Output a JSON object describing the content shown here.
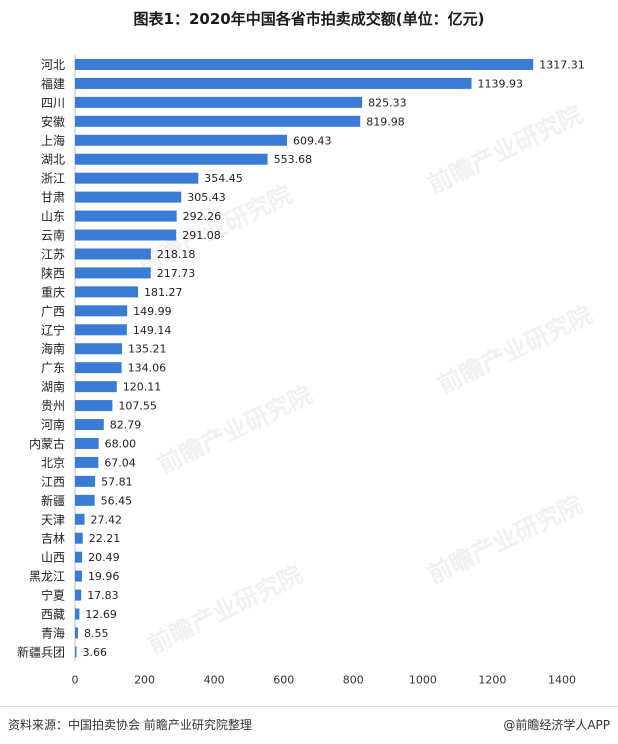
{
  "title": "图表1：2020年中国各省市拍卖成交额(单位：亿元)",
  "chart_data": {
    "type": "bar",
    "orientation": "horizontal",
    "title": "图表1：2020年中国各省市拍卖成交额(单位：亿元)",
    "xlabel": "",
    "ylabel": "",
    "xlim": [
      0,
      1400
    ],
    "x_ticks": [
      0,
      200,
      400,
      600,
      800,
      1000,
      1200,
      1400
    ],
    "grid": false,
    "bar_color": "#3a7bd5",
    "categories": [
      "河北",
      "福建",
      "四川",
      "安徽",
      "上海",
      "湖北",
      "浙江",
      "甘肃",
      "山东",
      "云南",
      "江苏",
      "陕西",
      "重庆",
      "广西",
      "辽宁",
      "海南",
      "广东",
      "湖南",
      "贵州",
      "河南",
      "内蒙古",
      "北京",
      "江西",
      "新疆",
      "天津",
      "吉林",
      "山西",
      "黑龙江",
      "宁夏",
      "西藏",
      "青海",
      "新疆兵团"
    ],
    "values": [
      1317.31,
      1139.93,
      825.33,
      819.98,
      609.43,
      553.68,
      354.45,
      305.43,
      292.26,
      291.08,
      218.18,
      217.73,
      181.27,
      149.99,
      149.14,
      135.21,
      134.06,
      120.11,
      107.55,
      82.79,
      68.0,
      67.04,
      57.81,
      56.45,
      27.42,
      22.21,
      20.49,
      19.96,
      17.83,
      12.69,
      8.55,
      3.66
    ],
    "value_labels": [
      "1317.31",
      "1139.93",
      "825.33",
      "819.98",
      "609.43",
      "553.68",
      "354.45",
      "305.43",
      "292.26",
      "291.08",
      "218.18",
      "217.73",
      "181.27",
      "149.99",
      "149.14",
      "135.21",
      "134.06",
      "120.11",
      "107.55",
      "82.79",
      "68.00",
      "67.04",
      "57.81",
      "56.45",
      "27.42",
      "22.21",
      "20.49",
      "19.96",
      "17.83",
      "12.69",
      "8.55",
      "3.66"
    ]
  },
  "footer": {
    "source": "资料来源：中国拍卖协会 前瞻产业研究院整理",
    "brand": "@前瞻经济学人APP"
  },
  "watermark": "前瞻产业研究院"
}
